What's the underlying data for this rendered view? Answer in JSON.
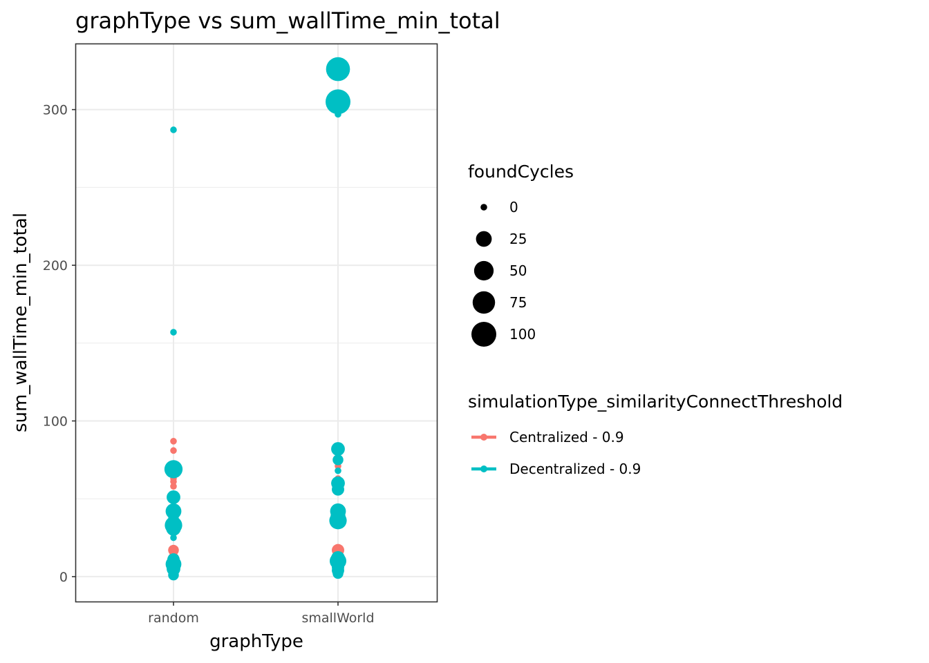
{
  "chart_data": {
    "type": "scatter",
    "title": "graphType  vs  sum_wallTime_min_total",
    "xlabel": "graphType",
    "ylabel": "sum_wallTime_min_total",
    "categories": [
      "random",
      "smallWorld"
    ],
    "ylim": [
      -16,
      342
    ],
    "yticks": [
      0,
      100,
      200,
      300
    ],
    "grid": true,
    "size_legend": {
      "title": "foundCycles",
      "breaks": [
        0,
        25,
        50,
        75,
        100
      ]
    },
    "color_legend": {
      "title": "simulationType_similarityConnectThreshold",
      "placement": "right"
    },
    "series": [
      {
        "name": "Centralized - 0.9",
        "color": "#F8766D",
        "points": [
          {
            "x": "random",
            "y": 87,
            "size": 0
          },
          {
            "x": "random",
            "y": 81,
            "size": 0
          },
          {
            "x": "random",
            "y": 70,
            "size": 0
          },
          {
            "x": "random",
            "y": 66,
            "size": 0
          },
          {
            "x": "random",
            "y": 63,
            "size": 0
          },
          {
            "x": "random",
            "y": 61,
            "size": 0
          },
          {
            "x": "random",
            "y": 58,
            "size": 0
          },
          {
            "x": "random",
            "y": 17,
            "size": 5
          },
          {
            "x": "random",
            "y": 12,
            "size": 5
          },
          {
            "x": "smallWorld",
            "y": 71,
            "size": 0
          },
          {
            "x": "smallWorld",
            "y": 63,
            "size": 0
          },
          {
            "x": "smallWorld",
            "y": 60,
            "size": 5
          },
          {
            "x": "smallWorld",
            "y": 17,
            "size": 10
          },
          {
            "x": "smallWorld",
            "y": 8,
            "size": 5
          }
        ]
      },
      {
        "name": "Decentralized - 0.9",
        "color": "#00BFC4",
        "points": [
          {
            "x": "random",
            "y": 287,
            "size": 0
          },
          {
            "x": "random",
            "y": 157,
            "size": 0
          },
          {
            "x": "random",
            "y": 69,
            "size": 40
          },
          {
            "x": "random",
            "y": 51,
            "size": 15
          },
          {
            "x": "random",
            "y": 42,
            "size": 25
          },
          {
            "x": "random",
            "y": 37,
            "size": 5
          },
          {
            "x": "random",
            "y": 33,
            "size": 35
          },
          {
            "x": "random",
            "y": 31,
            "size": 20
          },
          {
            "x": "random",
            "y": 25,
            "size": 0
          },
          {
            "x": "random",
            "y": 11,
            "size": 10
          },
          {
            "x": "random",
            "y": 8,
            "size": 25
          },
          {
            "x": "random",
            "y": 5,
            "size": 15
          },
          {
            "x": "random",
            "y": 3,
            "size": 5
          },
          {
            "x": "random",
            "y": 1,
            "size": 5
          },
          {
            "x": "smallWorld",
            "y": 326,
            "size": 90
          },
          {
            "x": "smallWorld",
            "y": 305,
            "size": 100
          },
          {
            "x": "smallWorld",
            "y": 297,
            "size": 0
          },
          {
            "x": "smallWorld",
            "y": 82,
            "size": 15
          },
          {
            "x": "smallWorld",
            "y": 75,
            "size": 5
          },
          {
            "x": "smallWorld",
            "y": 68,
            "size": 0
          },
          {
            "x": "smallWorld",
            "y": 60,
            "size": 15
          },
          {
            "x": "smallWorld",
            "y": 56,
            "size": 10
          },
          {
            "x": "smallWorld",
            "y": 42,
            "size": 25
          },
          {
            "x": "smallWorld",
            "y": 39,
            "size": 20
          },
          {
            "x": "smallWorld",
            "y": 36,
            "size": 35
          },
          {
            "x": "smallWorld",
            "y": 12,
            "size": 15
          },
          {
            "x": "smallWorld",
            "y": 10,
            "size": 30
          },
          {
            "x": "smallWorld",
            "y": 6,
            "size": 10
          },
          {
            "x": "smallWorld",
            "y": 4,
            "size": 10
          },
          {
            "x": "smallWorld",
            "y": 2,
            "size": 5
          }
        ]
      }
    ]
  }
}
